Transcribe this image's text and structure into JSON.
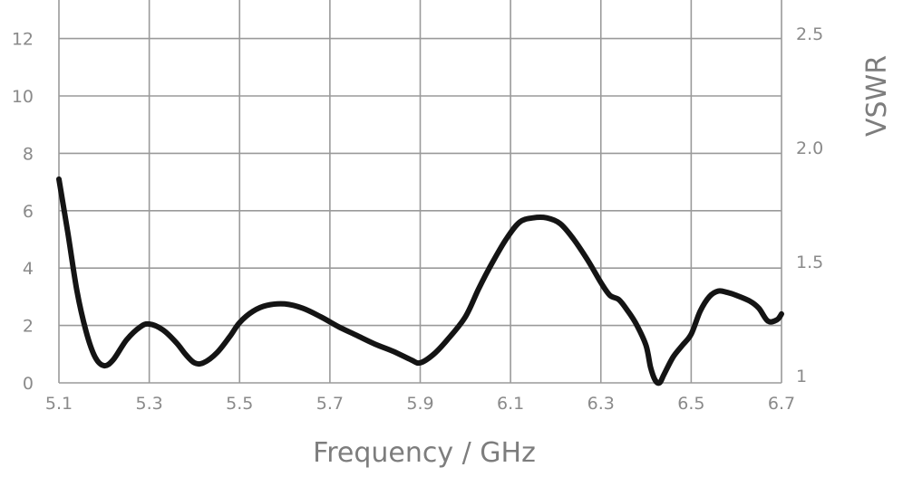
{
  "chart_data": {
    "type": "line",
    "title": "",
    "xlabel": "Frequency / GHz",
    "ylabel": "",
    "y2label": "VSWR",
    "xlim": [
      5.1,
      6.7
    ],
    "ylim": [
      0,
      13
    ],
    "y2lim": [
      1,
      2.55
    ],
    "x_ticks": [
      5.1,
      5.3,
      5.5,
      5.7,
      5.9,
      6.1,
      6.3,
      6.5,
      6.7
    ],
    "x_tick_labels": [
      "5.1",
      "5.3",
      "5.5",
      "5.7",
      "5.9",
      "6.1",
      "6.3",
      "6.5",
      "6.7"
    ],
    "y_ticks": [
      0,
      2,
      4,
      6,
      8,
      10,
      12
    ],
    "y_tick_labels": [
      "0",
      "2",
      "4",
      "6",
      "8",
      "10",
      "12"
    ],
    "y2_ticks": [
      1,
      1.5,
      2.0,
      2.5
    ],
    "y2_tick_labels": [
      "1",
      "1.5",
      "2.0",
      "2.5"
    ],
    "grid": true,
    "series": [
      {
        "name": "",
        "color": "#141414",
        "x": [
          5.1,
          5.12,
          5.14,
          5.16,
          5.18,
          5.2,
          5.22,
          5.25,
          5.28,
          5.3,
          5.33,
          5.36,
          5.38,
          5.4,
          5.42,
          5.45,
          5.48,
          5.5,
          5.53,
          5.56,
          5.6,
          5.64,
          5.68,
          5.72,
          5.76,
          5.8,
          5.84,
          5.88,
          5.9,
          5.93,
          5.96,
          6.0,
          6.03,
          6.06,
          6.09,
          6.12,
          6.15,
          6.18,
          6.21,
          6.24,
          6.27,
          6.3,
          6.32,
          6.34,
          6.36,
          6.38,
          6.4,
          6.41,
          6.42,
          6.43,
          6.44,
          6.46,
          6.48,
          6.5,
          6.52,
          6.54,
          6.56,
          6.58,
          6.6,
          6.63,
          6.65,
          6.67,
          6.69,
          6.7
        ],
        "y": [
          7.1,
          5.2,
          3.2,
          1.8,
          0.9,
          0.6,
          0.8,
          1.5,
          1.95,
          2.05,
          1.85,
          1.4,
          1.0,
          0.7,
          0.7,
          1.05,
          1.65,
          2.1,
          2.5,
          2.7,
          2.75,
          2.6,
          2.3,
          1.95,
          1.65,
          1.35,
          1.1,
          0.8,
          0.7,
          1.0,
          1.5,
          2.3,
          3.3,
          4.2,
          5.0,
          5.6,
          5.75,
          5.75,
          5.55,
          5.0,
          4.3,
          3.5,
          3.05,
          2.9,
          2.5,
          2.0,
          1.3,
          0.55,
          0.1,
          0.0,
          0.3,
          0.9,
          1.3,
          1.7,
          2.5,
          3.0,
          3.2,
          3.15,
          3.05,
          2.85,
          2.6,
          2.15,
          2.2,
          2.4
        ]
      }
    ]
  }
}
